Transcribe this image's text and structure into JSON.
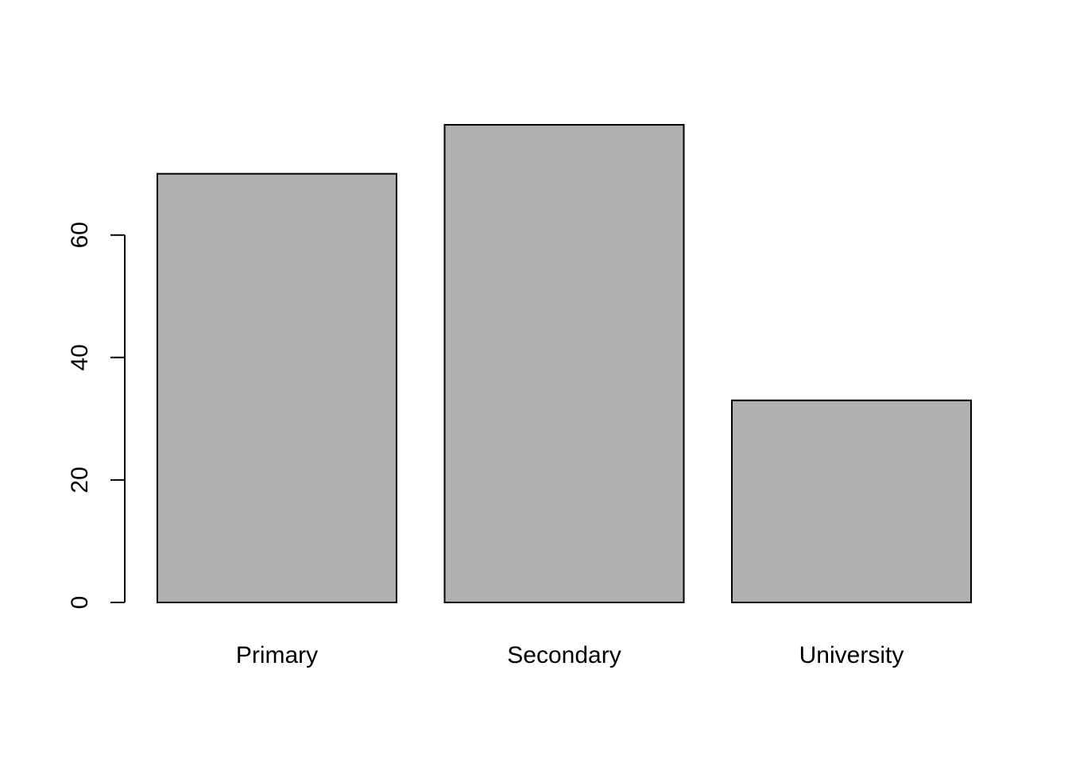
{
  "chart_data": {
    "type": "bar",
    "title": "",
    "xlabel": "",
    "ylabel": "",
    "categories": [
      "Primary",
      "Secondary",
      "University"
    ],
    "values": [
      70,
      78,
      33
    ],
    "yticks": [
      0,
      20,
      40,
      60
    ],
    "ylim": [
      0,
      78
    ],
    "bar_color": "#b0b0b0",
    "grid": false,
    "legend": "none"
  }
}
